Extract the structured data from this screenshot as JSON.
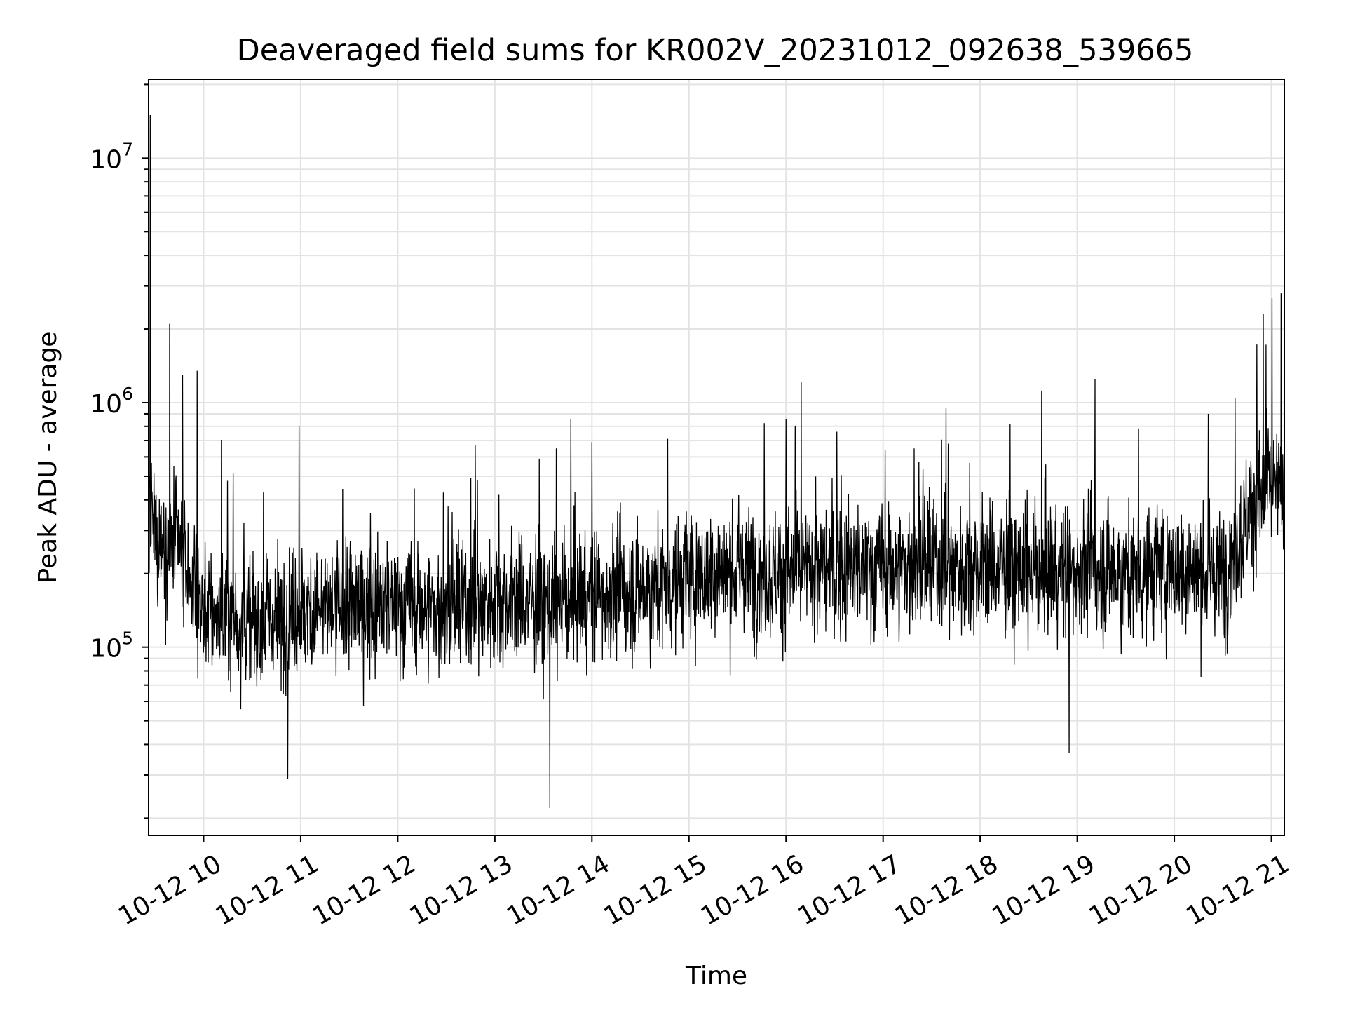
{
  "chart_data": {
    "type": "line",
    "title": "Deaveraged field sums for KR002V_20231012_092638_539665",
    "xlabel": "Time",
    "ylabel": "Peak ADU - average",
    "yscale": "log",
    "ylim": [
      17000,
      21000000
    ],
    "xlim": [
      "2023-10-12 09:26",
      "2023-10-12 21:08"
    ],
    "grid": true,
    "line_color": "#000000",
    "grid_color": "#e3e3e3",
    "x_ticks": [
      "10-12 10",
      "10-12 11",
      "10-12 12",
      "10-12 13",
      "10-12 14",
      "10-12 15",
      "10-12 16",
      "10-12 17",
      "10-12 18",
      "10-12 19",
      "10-12 20",
      "10-12 21"
    ],
    "y_ticks": [
      {
        "base": "10",
        "exp": "5",
        "value": 100000
      },
      {
        "base": "10",
        "exp": "6",
        "value": 1000000
      },
      {
        "base": "10",
        "exp": "7",
        "value": 10000000
      }
    ],
    "series": [
      {
        "x": [
          "2023-10-12 09:26",
          "2023-10-12 09:30",
          "2023-10-12 09:45",
          "2023-10-12 10:00",
          "2023-10-12 10:30",
          "2023-10-12 11:00",
          "2023-10-12 11:30",
          "2023-10-12 12:00",
          "2023-10-12 12:30",
          "2023-10-12 13:00",
          "2023-10-12 13:30",
          "2023-10-12 14:00",
          "2023-10-12 14:30",
          "2023-10-12 15:00",
          "2023-10-12 15:30",
          "2023-10-12 16:00",
          "2023-10-12 16:30",
          "2023-10-12 17:00",
          "2023-10-12 17:30",
          "2023-10-12 18:00",
          "2023-10-12 18:30",
          "2023-10-12 19:00",
          "2023-10-12 19:30",
          "2023-10-12 20:00",
          "2023-10-12 20:30",
          "2023-10-12 20:50",
          "2023-10-12 21:00",
          "2023-10-12 21:08"
        ],
        "y": [
          350000,
          280000,
          250000,
          140000,
          125000,
          140000,
          145000,
          150000,
          140000,
          160000,
          150000,
          165000,
          170000,
          195000,
          205000,
          200000,
          210000,
          210000,
          215000,
          215000,
          205000,
          210000,
          200000,
          210000,
          195000,
          400000,
          450000,
          420000
        ]
      }
    ],
    "spikes": [
      {
        "x": "2023-10-12 09:27",
        "y": 15000000
      },
      {
        "x": "2023-10-12 09:39",
        "y": 2100000
      },
      {
        "x": "2023-10-12 09:47",
        "y": 1300000
      },
      {
        "x": "2023-10-12 09:56",
        "y": 1350000
      },
      {
        "x": "2023-10-12 10:11",
        "y": 700000
      },
      {
        "x": "2023-10-12 10:59",
        "y": 800000
      },
      {
        "x": "2023-10-12 12:48",
        "y": 440000
      },
      {
        "x": "2023-10-12 13:38",
        "y": 650000
      },
      {
        "x": "2023-10-12 14:00",
        "y": 690000
      },
      {
        "x": "2023-10-12 19:11",
        "y": 1250000
      },
      {
        "x": "2023-10-12 20:21",
        "y": 900000
      },
      {
        "x": "2023-10-12 20:55",
        "y": 2300000
      },
      {
        "x": "2023-10-12 21:06",
        "y": 2800000
      },
      {
        "x": "2023-10-12 13:34",
        "y": 22000
      },
      {
        "x": "2023-10-12 10:52",
        "y": 29000
      },
      {
        "x": "2023-10-12 18:55",
        "y": 37000
      }
    ]
  }
}
